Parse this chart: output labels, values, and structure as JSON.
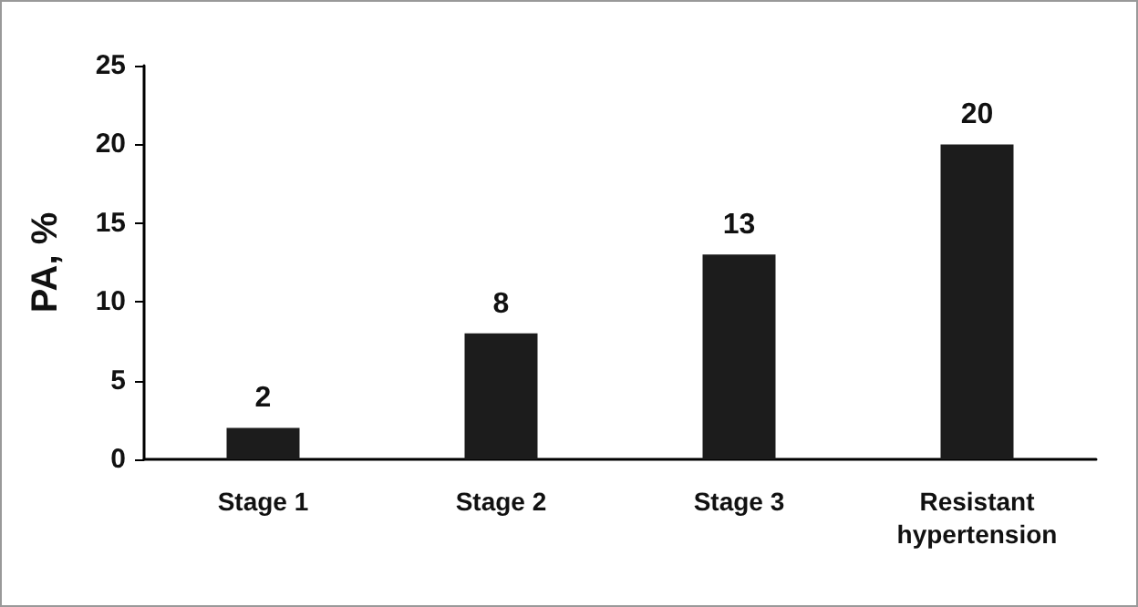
{
  "chart_data": {
    "type": "bar",
    "ylabel": "PA, %",
    "categories": [
      "Stage 1",
      "Stage 2",
      "Stage 3",
      "Resistant\nhypertension"
    ],
    "values": [
      2,
      8,
      13,
      20
    ],
    "color": "#1c1c1c",
    "ylim": [
      0,
      25
    ],
    "yticks": [
      0,
      5,
      10,
      15,
      20,
      25
    ],
    "grid": false,
    "data_labels": true
  }
}
